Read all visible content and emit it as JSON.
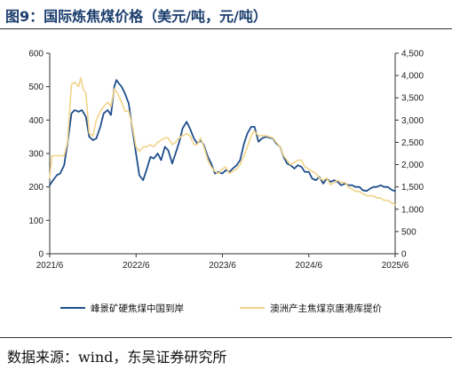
{
  "figure": {
    "title": "图9：国际炼焦煤价格（美元/吨，元/吨）",
    "source": "数据来源：wind，东吴证券研究所"
  },
  "chart_data": {
    "type": "line",
    "title": "",
    "xlabel": "",
    "ylabel": "",
    "x_ticks": [
      "2021/6",
      "2022/6",
      "2023/6",
      "2024/6",
      "2025/6"
    ],
    "xlim": [
      "2021-06",
      "2025-06"
    ],
    "y_left": {
      "lim": [
        0,
        600
      ],
      "ticks": [
        "0",
        "100",
        "200",
        "300",
        "400",
        "500",
        "600"
      ]
    },
    "y_right": {
      "lim": [
        0,
        4500
      ],
      "ticks": [
        "0",
        "500",
        "1,000",
        "1,500",
        "2,000",
        "2,500",
        "3,000",
        "3,500",
        "4,000",
        "4,500"
      ]
    },
    "legend_position": "bottom",
    "grid": false,
    "series": [
      {
        "name": "峰景矿硬焦煤中国到岸",
        "axis": "left",
        "color": "#1f4e8c",
        "points": [
          [
            "2021-06-01",
            205
          ],
          [
            "2021-06-15",
            220
          ],
          [
            "2021-07-01",
            235
          ],
          [
            "2021-07-15",
            240
          ],
          [
            "2021-08-01",
            265
          ],
          [
            "2021-08-15",
            330
          ],
          [
            "2021-09-01",
            420
          ],
          [
            "2021-09-15",
            430
          ],
          [
            "2021-10-01",
            425
          ],
          [
            "2021-10-15",
            430
          ],
          [
            "2021-11-01",
            410
          ],
          [
            "2021-11-15",
            350
          ],
          [
            "2021-12-01",
            340
          ],
          [
            "2021-12-15",
            345
          ],
          [
            "2022-01-01",
            380
          ],
          [
            "2022-01-15",
            420
          ],
          [
            "2022-02-01",
            430
          ],
          [
            "2022-02-15",
            415
          ],
          [
            "2022-03-01",
            500
          ],
          [
            "2022-03-10",
            520
          ],
          [
            "2022-03-20",
            510
          ],
          [
            "2022-04-01",
            500
          ],
          [
            "2022-04-15",
            480
          ],
          [
            "2022-05-01",
            450
          ],
          [
            "2022-05-15",
            380
          ],
          [
            "2022-06-01",
            300
          ],
          [
            "2022-06-15",
            235
          ],
          [
            "2022-07-01",
            220
          ],
          [
            "2022-07-15",
            250
          ],
          [
            "2022-08-01",
            290
          ],
          [
            "2022-08-15",
            285
          ],
          [
            "2022-09-01",
            300
          ],
          [
            "2022-09-15",
            280
          ],
          [
            "2022-10-01",
            320
          ],
          [
            "2022-10-15",
            310
          ],
          [
            "2022-11-01",
            270
          ],
          [
            "2022-11-15",
            300
          ],
          [
            "2022-12-01",
            335
          ],
          [
            "2022-12-15",
            375
          ],
          [
            "2023-01-01",
            395
          ],
          [
            "2023-01-15",
            375
          ],
          [
            "2023-02-01",
            345
          ],
          [
            "2023-02-15",
            330
          ],
          [
            "2023-03-01",
            340
          ],
          [
            "2023-03-15",
            325
          ],
          [
            "2023-04-01",
            290
          ],
          [
            "2023-04-15",
            270
          ],
          [
            "2023-05-01",
            240
          ],
          [
            "2023-05-15",
            245
          ],
          [
            "2023-06-01",
            240
          ],
          [
            "2023-06-15",
            250
          ],
          [
            "2023-07-01",
            245
          ],
          [
            "2023-07-15",
            255
          ],
          [
            "2023-08-01",
            265
          ],
          [
            "2023-08-15",
            280
          ],
          [
            "2023-09-01",
            330
          ],
          [
            "2023-09-15",
            360
          ],
          [
            "2023-10-01",
            380
          ],
          [
            "2023-10-15",
            380
          ],
          [
            "2023-11-01",
            335
          ],
          [
            "2023-11-15",
            345
          ],
          [
            "2023-12-01",
            350
          ],
          [
            "2024-01-01",
            345
          ],
          [
            "2024-01-15",
            330
          ],
          [
            "2024-02-01",
            320
          ],
          [
            "2024-02-15",
            290
          ],
          [
            "2024-03-01",
            270
          ],
          [
            "2024-03-15",
            265
          ],
          [
            "2024-04-01",
            255
          ],
          [
            "2024-04-15",
            265
          ],
          [
            "2024-05-01",
            260
          ],
          [
            "2024-05-15",
            245
          ],
          [
            "2024-06-01",
            245
          ],
          [
            "2024-06-15",
            225
          ],
          [
            "2024-07-01",
            220
          ],
          [
            "2024-07-15",
            230
          ],
          [
            "2024-08-01",
            210
          ],
          [
            "2024-08-15",
            225
          ],
          [
            "2024-09-01",
            215
          ],
          [
            "2024-09-15",
            220
          ],
          [
            "2024-10-01",
            215
          ],
          [
            "2024-10-15",
            205
          ],
          [
            "2024-11-01",
            210
          ],
          [
            "2024-11-15",
            205
          ],
          [
            "2024-12-01",
            205
          ],
          [
            "2024-12-15",
            200
          ],
          [
            "2025-01-01",
            200
          ],
          [
            "2025-01-15",
            190
          ],
          [
            "2025-02-01",
            188
          ],
          [
            "2025-02-15",
            195
          ],
          [
            "2025-03-01",
            200
          ],
          [
            "2025-03-15",
            200
          ],
          [
            "2025-04-01",
            205
          ],
          [
            "2025-04-15",
            200
          ],
          [
            "2025-05-01",
            200
          ],
          [
            "2025-05-10",
            195
          ],
          [
            "2025-05-20",
            190
          ],
          [
            "2025-06-01",
            188
          ]
        ]
      },
      {
        "name": "澳洲产主焦煤京唐港库提价",
        "axis": "right",
        "color": "#f2d38a",
        "points": [
          [
            "2021-06-01",
            1700
          ],
          [
            "2021-06-10",
            2200
          ],
          [
            "2021-07-01",
            2200
          ],
          [
            "2021-07-15",
            2200
          ],
          [
            "2021-08-01",
            2200
          ],
          [
            "2021-08-15",
            2500
          ],
          [
            "2021-09-01",
            3800
          ],
          [
            "2021-09-15",
            3850
          ],
          [
            "2021-10-01",
            3750
          ],
          [
            "2021-10-10",
            3950
          ],
          [
            "2021-10-20",
            3700
          ],
          [
            "2021-11-01",
            3600
          ],
          [
            "2021-11-15",
            2700
          ],
          [
            "2021-12-01",
            2650
          ],
          [
            "2021-12-15",
            3000
          ],
          [
            "2022-01-01",
            3200
          ],
          [
            "2022-01-15",
            3300
          ],
          [
            "2022-02-01",
            3400
          ],
          [
            "2022-02-15",
            3300
          ],
          [
            "2022-03-01",
            3700
          ],
          [
            "2022-03-15",
            3600
          ],
          [
            "2022-04-01",
            3400
          ],
          [
            "2022-04-15",
            3200
          ],
          [
            "2022-05-01",
            3200
          ],
          [
            "2022-05-15",
            2900
          ],
          [
            "2022-06-01",
            2400
          ],
          [
            "2022-06-15",
            2300
          ],
          [
            "2022-07-01",
            2400
          ],
          [
            "2022-07-15",
            2400
          ],
          [
            "2022-08-01",
            2450
          ],
          [
            "2022-08-15",
            2400
          ],
          [
            "2022-09-01",
            2500
          ],
          [
            "2022-09-15",
            2550
          ],
          [
            "2022-10-01",
            2600
          ],
          [
            "2022-10-15",
            2600
          ],
          [
            "2022-11-01",
            2450
          ],
          [
            "2022-11-15",
            2500
          ],
          [
            "2022-12-01",
            2600
          ],
          [
            "2022-12-15",
            2650
          ],
          [
            "2023-01-01",
            2700
          ],
          [
            "2023-01-15",
            2650
          ],
          [
            "2023-02-01",
            2450
          ],
          [
            "2023-02-15",
            2450
          ],
          [
            "2023-03-01",
            2600
          ],
          [
            "2023-03-15",
            2400
          ],
          [
            "2023-04-01",
            2100
          ],
          [
            "2023-04-15",
            1950
          ],
          [
            "2023-05-01",
            1850
          ],
          [
            "2023-05-15",
            1800
          ],
          [
            "2023-06-01",
            1900
          ],
          [
            "2023-06-15",
            1950
          ],
          [
            "2023-07-01",
            1800
          ],
          [
            "2023-07-15",
            1850
          ],
          [
            "2023-08-01",
            1900
          ],
          [
            "2023-08-15",
            2000
          ],
          [
            "2023-09-01",
            2200
          ],
          [
            "2023-09-15",
            2400
          ],
          [
            "2023-10-01",
            2650
          ],
          [
            "2023-10-15",
            2750
          ],
          [
            "2023-11-01",
            2650
          ],
          [
            "2023-11-15",
            2650
          ],
          [
            "2023-12-01",
            2650
          ],
          [
            "2024-01-01",
            2600
          ],
          [
            "2024-01-15",
            2500
          ],
          [
            "2024-02-01",
            2400
          ],
          [
            "2024-02-15",
            2200
          ],
          [
            "2024-03-01",
            2100
          ],
          [
            "2024-03-15",
            2000
          ],
          [
            "2024-04-01",
            2050
          ],
          [
            "2024-04-15",
            2100
          ],
          [
            "2024-05-01",
            2100
          ],
          [
            "2024-05-15",
            1950
          ],
          [
            "2024-06-01",
            1900
          ],
          [
            "2024-06-15",
            1850
          ],
          [
            "2024-07-01",
            1800
          ],
          [
            "2024-07-15",
            1700
          ],
          [
            "2024-08-01",
            1650
          ],
          [
            "2024-08-15",
            1700
          ],
          [
            "2024-09-01",
            1550
          ],
          [
            "2024-09-15",
            1600
          ],
          [
            "2024-10-01",
            1650
          ],
          [
            "2024-10-15",
            1600
          ],
          [
            "2024-11-01",
            1600
          ],
          [
            "2024-11-15",
            1500
          ],
          [
            "2024-12-01",
            1450
          ],
          [
            "2024-12-15",
            1400
          ],
          [
            "2025-01-01",
            1400
          ],
          [
            "2025-01-15",
            1350
          ],
          [
            "2025-02-01",
            1300
          ],
          [
            "2025-02-15",
            1300
          ],
          [
            "2025-03-01",
            1300
          ],
          [
            "2025-03-15",
            1250
          ],
          [
            "2025-04-01",
            1250
          ],
          [
            "2025-04-15",
            1200
          ],
          [
            "2025-05-01",
            1200
          ],
          [
            "2025-05-15",
            1150
          ],
          [
            "2025-06-01",
            1100
          ]
        ]
      }
    ]
  }
}
